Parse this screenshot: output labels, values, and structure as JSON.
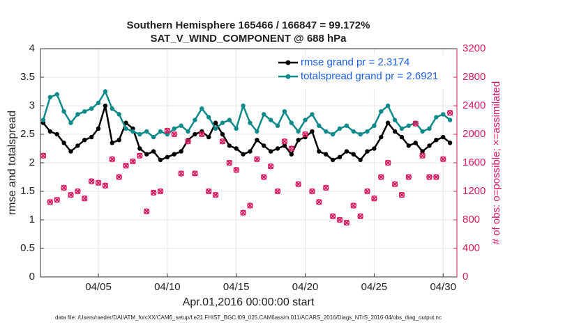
{
  "chart_data": {
    "type": "line",
    "title": "Southern Hemisphere 165466 / 166847 = 99.172%",
    "subtitle": "SAT_V_WIND_COMPONENT @ 688 hPa",
    "y_label": "rmse and totalspread",
    "y2_label": "# of obs: o=possible; ×=assimilated",
    "x_label": "Apr.01,2016 00:00:00 start",
    "footnote": "data file: /Users/raeder/DAI/ATM_forcXX/CAM6_setup/f.e21.FHIST_BGC.f09_025.CAM6assim.011/ACARS_2016/Diags_NTrS_2016-04/obs_diag_output.nc",
    "x": [
      1,
      1.5,
      2,
      2.5,
      3,
      3.5,
      4,
      4.5,
      5,
      5.5,
      6,
      6.5,
      7,
      7.5,
      8,
      8.5,
      9,
      9.5,
      10,
      10.5,
      11,
      11.5,
      12,
      12.5,
      13,
      13.5,
      14,
      14.5,
      15,
      15.5,
      16,
      16.5,
      17,
      17.5,
      18,
      18.5,
      19,
      19.5,
      20,
      20.5,
      21,
      21.5,
      22,
      22.5,
      23,
      23.5,
      24,
      24.5,
      25,
      25.5,
      26,
      26.5,
      27,
      27.5,
      28,
      28.5,
      29,
      29.5,
      30,
      30.5
    ],
    "xlim": [
      0.8,
      31
    ],
    "xticks": [
      {
        "value": 5,
        "label": "04/05"
      },
      {
        "value": 10,
        "label": "04/10"
      },
      {
        "value": 15,
        "label": "04/15"
      },
      {
        "value": 20,
        "label": "04/20"
      },
      {
        "value": 25,
        "label": "04/25"
      },
      {
        "value": 30,
        "label": "04/30"
      }
    ],
    "ylim": [
      0,
      4
    ],
    "yticks": [
      0,
      0.5,
      1,
      1.5,
      2,
      2.5,
      3,
      3.5,
      4
    ],
    "y2lim": [
      0,
      3200
    ],
    "y2ticks": [
      0,
      400,
      800,
      1200,
      1600,
      2000,
      2400,
      2800,
      3200
    ],
    "grid": true,
    "legend": "upper right",
    "y2_color": "#d81b60",
    "series": [
      {
        "name": "rmse grand pr = 2.3174",
        "color": "#000000",
        "marker": "dot",
        "values": [
          2.7,
          2.55,
          2.5,
          2.35,
          2.2,
          2.3,
          2.4,
          2.45,
          2.6,
          3.0,
          2.35,
          2.4,
          2.7,
          2.6,
          2.25,
          2.15,
          2.2,
          2.05,
          2.1,
          2.15,
          2.2,
          2.4,
          2.5,
          2.55,
          2.45,
          2.7,
          2.5,
          2.3,
          2.25,
          2.15,
          2.2,
          2.4,
          2.3,
          2.2,
          2.25,
          2.3,
          2.15,
          2.4,
          2.45,
          2.55,
          2.2,
          2.15,
          2.05,
          2.1,
          2.2,
          2.15,
          2.05,
          2.2,
          2.25,
          2.45,
          2.7,
          2.55,
          2.45,
          2.3,
          2.35,
          2.2,
          2.3,
          2.4,
          2.45,
          2.35
        ]
      },
      {
        "name": "totalspread grand pr = 2.6921",
        "color": "#0e8a8a",
        "marker": "dot",
        "values": [
          2.75,
          3.15,
          3.2,
          2.9,
          2.7,
          2.85,
          2.9,
          2.95,
          3.05,
          3.25,
          2.95,
          2.85,
          2.6,
          2.55,
          2.5,
          2.55,
          2.45,
          2.55,
          2.5,
          2.6,
          2.65,
          2.55,
          2.75,
          2.95,
          2.8,
          2.6,
          2.7,
          2.75,
          2.6,
          3.0,
          2.7,
          2.55,
          2.85,
          2.75,
          2.65,
          2.9,
          2.7,
          2.55,
          2.75,
          2.85,
          2.65,
          2.55,
          2.5,
          2.6,
          2.65,
          2.55,
          2.5,
          2.55,
          2.65,
          2.9,
          3.0,
          2.75,
          2.6,
          2.65,
          2.7,
          2.55,
          2.6,
          2.8,
          2.85,
          2.75
        ]
      },
      {
        "axis": "y2",
        "color": "#d81b60",
        "marker": "o",
        "values": [
          1700,
          1050,
          1080,
          1250,
          1150,
          1200,
          1100,
          1340,
          1320,
          1280,
          1650,
          1400,
          1560,
          1620,
          1700,
          920,
          1180,
          1200,
          2050,
          2000,
          1450,
          1900,
          1450,
          2000,
          1200,
          1150,
          1900,
          1600,
          1500,
          900,
          1000,
          1650,
          1400,
          1550,
          1200,
          1900,
          1800,
          1300,
          2000,
          1200,
          1050,
          1250,
          850,
          800,
          760,
          1000,
          850,
          1200,
          1100,
          1400,
          1600,
          1300,
          1150,
          1400,
          2150,
          1700,
          1400,
          1400,
          1650,
          2300
        ]
      },
      {
        "axis": "y2",
        "color": "#d81b60",
        "marker": "x",
        "values": [
          1700,
          1050,
          1080,
          1250,
          1150,
          1200,
          1100,
          1340,
          1320,
          1280,
          1650,
          1400,
          1560,
          1620,
          1700,
          920,
          1180,
          1200,
          2050,
          2000,
          1450,
          1900,
          1450,
          2000,
          1200,
          1150,
          1900,
          1600,
          1500,
          900,
          1000,
          1650,
          1400,
          1550,
          1200,
          1900,
          1800,
          1300,
          2000,
          1200,
          1050,
          1250,
          850,
          800,
          760,
          1000,
          850,
          1200,
          1100,
          1400,
          1600,
          1300,
          1150,
          1400,
          2150,
          1700,
          1400,
          1400,
          1650,
          2300
        ]
      }
    ]
  }
}
